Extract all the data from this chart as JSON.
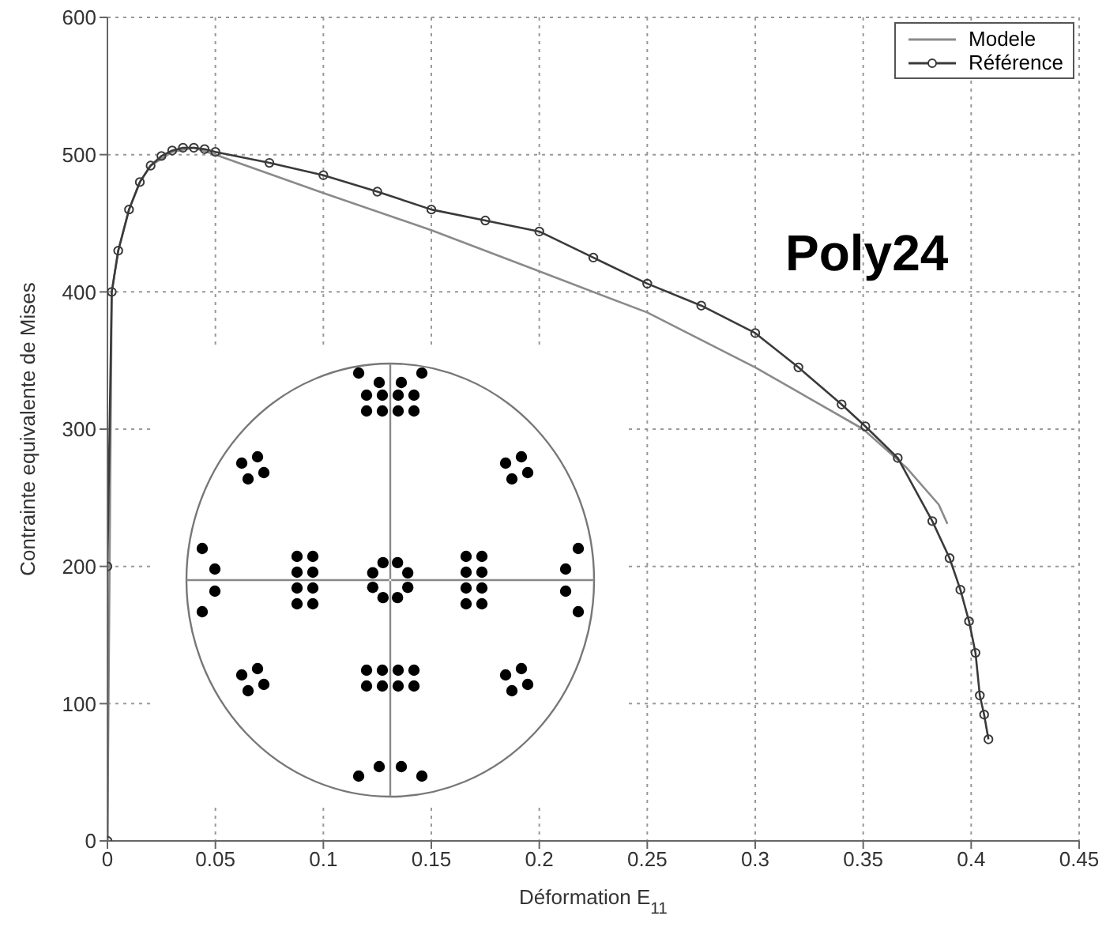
{
  "chart_data": {
    "type": "line",
    "xlabel": "Déformation E$_{11}$",
    "ylabel": "Contrainte equivalente de Mises",
    "xlim": [
      0,
      0.45
    ],
    "xticks": [
      0,
      0.05,
      0.1,
      0.15,
      0.2,
      0.25,
      0.3,
      0.35,
      0.4,
      0.45
    ],
    "ylim": [
      0,
      600
    ],
    "yticks": [
      0,
      100,
      200,
      300,
      400,
      500,
      600
    ],
    "grid": true,
    "legend": "top right",
    "line_style": "solid",
    "annotations": [
      "Poly24"
    ],
    "series": [
      {
        "name": "Modele",
        "color": "#8a8a8a",
        "marker": "none",
        "x": [
          0,
          0.002,
          0.005,
          0.01,
          0.015,
          0.02,
          0.03,
          0.04,
          0.05,
          0.1,
          0.15,
          0.2,
          0.25,
          0.3,
          0.35,
          0.37,
          0.385,
          0.389
        ],
        "values": [
          0,
          400,
          430,
          460,
          480,
          492,
          502,
          505,
          500,
          472,
          445,
          415,
          385,
          345,
          300,
          272,
          245,
          231
        ]
      },
      {
        "name": "Référence",
        "color": "#3a3a3a",
        "marker": "circle",
        "x": [
          0,
          0,
          0.002,
          0.005,
          0.01,
          0.015,
          0.02,
          0.025,
          0.03,
          0.035,
          0.04,
          0.045,
          0.05,
          0.075,
          0.1,
          0.125,
          0.15,
          0.175,
          0.2,
          0.225,
          0.25,
          0.275,
          0.3,
          0.32,
          0.34,
          0.351,
          0.366,
          0.382,
          0.39,
          0.395,
          0.399,
          0.402,
          0.404,
          0.406,
          0.408
        ],
        "values": [
          0,
          200,
          400,
          430,
          460,
          480,
          492,
          499,
          503,
          505,
          505,
          504,
          502,
          494,
          485,
          473,
          460,
          452,
          444,
          425,
          406,
          390,
          370,
          345,
          318,
          302,
          279,
          233,
          206,
          183,
          160,
          137,
          106,
          92,
          74
        ]
      }
    ]
  }
}
